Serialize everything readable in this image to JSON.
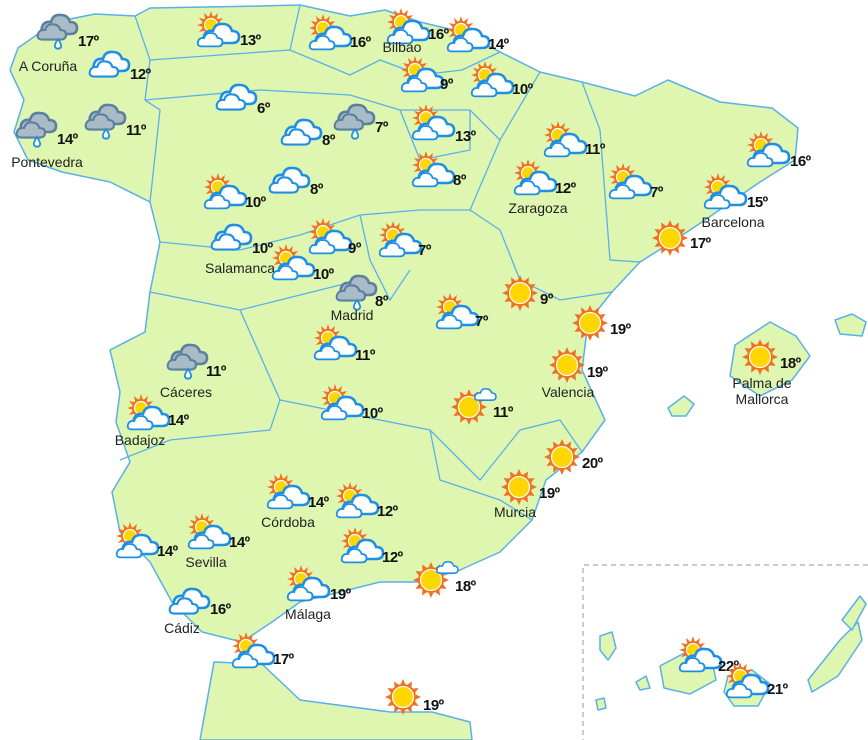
{
  "colors": {
    "land": "#dff6b0",
    "border": "#5ab0ea",
    "cloud_stroke": "#1e8fe6",
    "sun": "#ffd600",
    "sun_rays": "#f0701e",
    "rain_cloud": "#aabbc8",
    "rain_stroke": "#5b809f"
  },
  "stations": [
    {
      "icon": "rain",
      "temp": "17º",
      "city": "A Coruña"
    },
    {
      "icon": "cloud",
      "temp": "12º"
    },
    {
      "icon": "rain",
      "temp": "14º",
      "city": "Pontevedra"
    },
    {
      "icon": "rain",
      "temp": "11º"
    },
    {
      "icon": "sun-cloud",
      "temp": "13º"
    },
    {
      "icon": "sun-cloud",
      "temp": "16º"
    },
    {
      "icon": "sun-cloud",
      "temp": "16º",
      "city": "Bilbao"
    },
    {
      "icon": "sun-cloud",
      "temp": "14º"
    },
    {
      "icon": "cloud",
      "temp": "6º"
    },
    {
      "icon": "sun-cloud",
      "temp": "9º"
    },
    {
      "icon": "sun-cloud",
      "temp": "10º"
    },
    {
      "icon": "cloud",
      "temp": "8º"
    },
    {
      "icon": "rain",
      "temp": "7º"
    },
    {
      "icon": "sun-cloud",
      "temp": "13º"
    },
    {
      "icon": "sun-cloud",
      "temp": "8º"
    },
    {
      "icon": "sun-cloud",
      "temp": "11º"
    },
    {
      "icon": "sun-cloud",
      "temp": "16º"
    },
    {
      "icon": "cloud",
      "temp": "8º"
    },
    {
      "icon": "sun-cloud",
      "temp": "10º"
    },
    {
      "icon": "sun-cloud",
      "temp": "12º",
      "city": "Zaragoza"
    },
    {
      "icon": "sun-cloud",
      "temp": "7º"
    },
    {
      "icon": "sun-cloud",
      "temp": "15º",
      "city": "Barcelona"
    },
    {
      "icon": "cloud",
      "temp": "10º",
      "city": "Salamanca"
    },
    {
      "icon": "sun-cloud",
      "temp": "9º"
    },
    {
      "icon": "sun-cloud",
      "temp": "7º"
    },
    {
      "icon": "sun",
      "temp": "17º"
    },
    {
      "icon": "sun-cloud",
      "temp": "10º"
    },
    {
      "icon": "rain",
      "temp": "8º",
      "city": "Madrid"
    },
    {
      "icon": "sun",
      "temp": "9º"
    },
    {
      "icon": "sun-cloud",
      "temp": "7º"
    },
    {
      "icon": "sun",
      "temp": "19º"
    },
    {
      "icon": "sun",
      "temp": "18º",
      "city": "Palma de Mallorca"
    },
    {
      "icon": "sun-cloud",
      "temp": "11º"
    },
    {
      "icon": "rain",
      "temp": "11º",
      "city": "Cáceres"
    },
    {
      "icon": "sun",
      "temp": "19º",
      "city": "Valencia"
    },
    {
      "icon": "sun-cloud",
      "temp": "14º",
      "city": "Badajoz"
    },
    {
      "icon": "sun-cloud",
      "temp": "10º"
    },
    {
      "icon": "sun-small-cloud",
      "temp": "11º"
    },
    {
      "icon": "sun",
      "temp": "20º"
    },
    {
      "icon": "sun",
      "temp": "19º",
      "city": "Murcia"
    },
    {
      "icon": "sun-cloud",
      "temp": "14º",
      "city": "Córdoba"
    },
    {
      "icon": "sun-cloud",
      "temp": "12º"
    },
    {
      "icon": "sun-cloud",
      "temp": "14º"
    },
    {
      "icon": "sun-cloud",
      "temp": "14º",
      "city": "Sevilla"
    },
    {
      "icon": "sun-cloud",
      "temp": "12º"
    },
    {
      "icon": "sun-small-cloud",
      "temp": "18º"
    },
    {
      "icon": "sun-cloud",
      "temp": "19º",
      "city": "Málaga"
    },
    {
      "icon": "cloud",
      "temp": "16º",
      "city": "Cádiz"
    },
    {
      "icon": "sun-cloud",
      "temp": "17º"
    },
    {
      "icon": "sun",
      "temp": "19º"
    },
    {
      "icon": "sun-cloud",
      "temp": "22º"
    },
    {
      "icon": "sun-cloud",
      "temp": "21º"
    }
  ]
}
